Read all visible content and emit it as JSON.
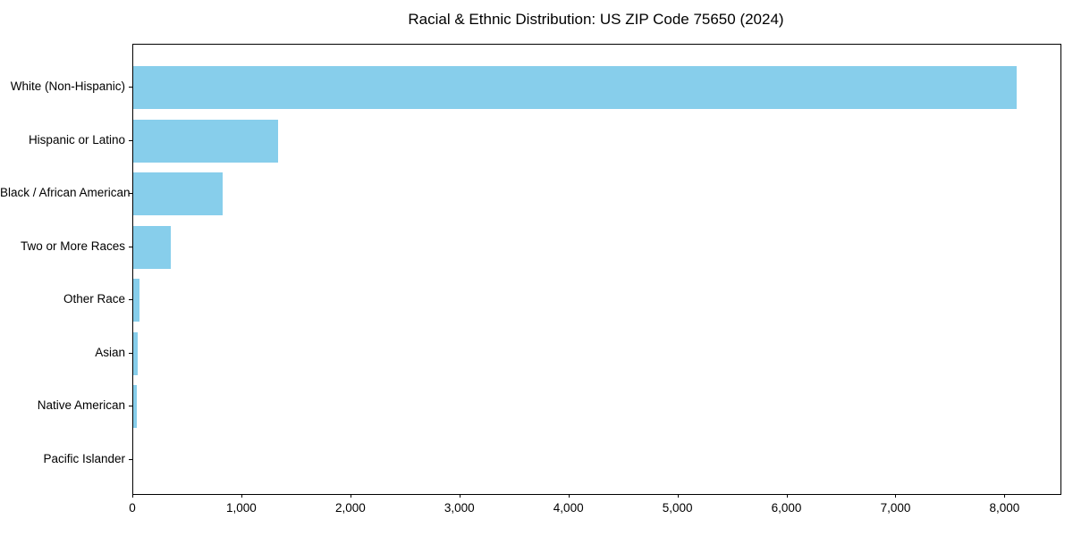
{
  "title": "Racial & Ethnic Distribution: US ZIP Code 75650 (2024)",
  "colors": {
    "bar": "#87CEEB",
    "axis": "#000000",
    "background": "#FFFFFF",
    "text": "#000000"
  },
  "chart_data": {
    "type": "bar",
    "orientation": "horizontal",
    "title": "Racial & Ethnic Distribution: US ZIP Code 75650 (2024)",
    "categories": [
      "White (Non-Hispanic)",
      "Hispanic or Latino",
      "Black / African American",
      "Two or More Races",
      "Other Race",
      "Asian",
      "Native American",
      "Pacific Islander"
    ],
    "values": [
      8100,
      1330,
      820,
      345,
      55,
      45,
      35,
      0
    ],
    "xlabel": "",
    "ylabel": "",
    "xlim": [
      0,
      8505
    ],
    "x_ticks": [
      0,
      1000,
      2000,
      3000,
      4000,
      5000,
      6000,
      7000,
      8000
    ],
    "x_tick_labels": [
      "0",
      "1,000",
      "2,000",
      "3,000",
      "4,000",
      "5,000",
      "6,000",
      "7,000",
      "8,000"
    ],
    "grid": false,
    "legend": null,
    "bar_color": "#87CEEB"
  }
}
